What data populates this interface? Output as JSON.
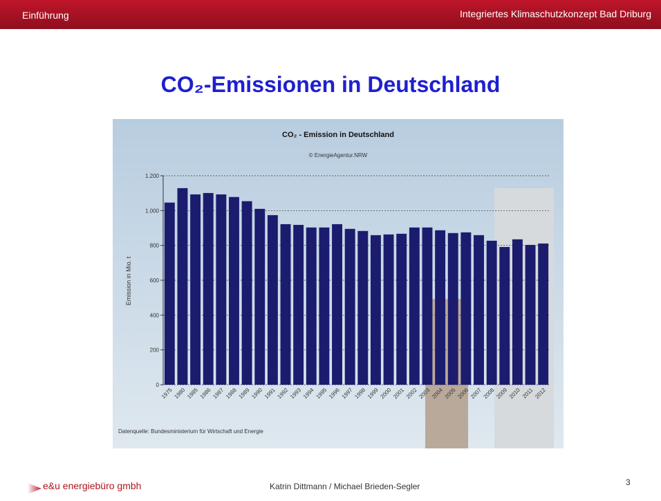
{
  "header": {
    "section": "Einführung",
    "project": "Integriertes Klimaschutzkonzept Bad Driburg"
  },
  "slide_title": "CO₂-Emissionen in Deutschland",
  "footer": {
    "company": "e&u energiebüro gmbh",
    "authors": "Katrin Dittmann / Michael Brieden-Segler",
    "page": "3"
  },
  "chart_data": {
    "type": "bar",
    "title": "CO₂ - Emission in Deutschland",
    "subtitle": "© EnergieAgentur.NRW",
    "y_label": "Emission in Mio. t",
    "source": "Datenquelle: Bundesministerium für Wirtschaft und Energie",
    "categories": [
      "1975",
      "1980",
      "1985",
      "1986",
      "1987",
      "1988",
      "1989",
      "1990",
      "1991",
      "1992",
      "1993",
      "1994",
      "1995",
      "1996",
      "1997",
      "1998",
      "1999",
      "2000",
      "2001",
      "2002",
      "2003",
      "2004",
      "2005",
      "2006",
      "2007",
      "2008",
      "2009",
      "2010",
      "2011",
      "2012"
    ],
    "values": [
      1046,
      1129,
      1093,
      1101,
      1093,
      1078,
      1054,
      1010,
      974,
      922,
      918,
      903,
      903,
      922,
      895,
      883,
      859,
      863,
      867,
      903,
      903,
      887,
      871,
      875,
      859,
      827,
      791,
      835,
      803,
      811
    ],
    "color": "#1c1c6e",
    "ylim": [
      0,
      1200
    ],
    "yticks": [
      0,
      200,
      400,
      600,
      800,
      {
        "value": 1000,
        "label": "1.000"
      },
      {
        "value": 1200,
        "label": "1.200"
      }
    ],
    "grid": true
  }
}
